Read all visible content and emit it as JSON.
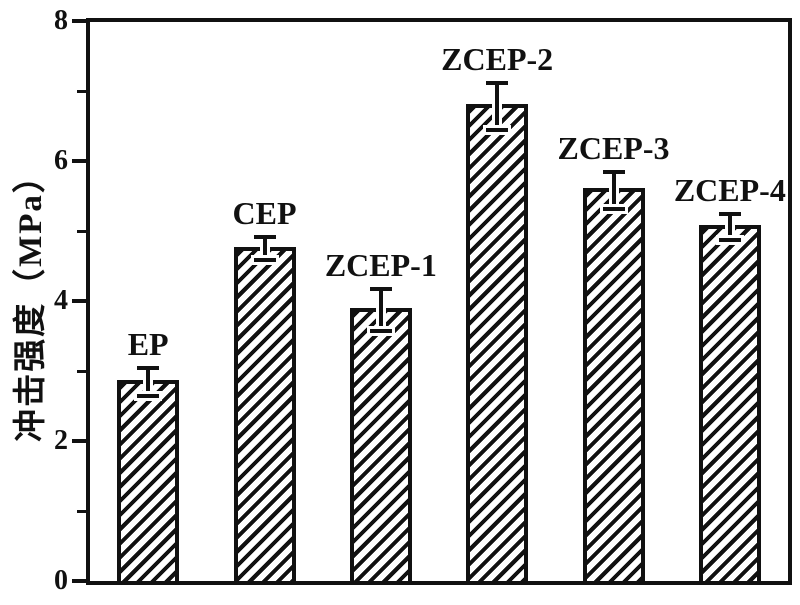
{
  "figure": {
    "background_color": "#ffffff",
    "ink_color": "#111111"
  },
  "chart_data": {
    "type": "bar",
    "title": "",
    "xlabel": "",
    "ylabel": "冲击强度（MPa）",
    "categories": [
      "EP",
      "CEP",
      "ZCEP-1",
      "ZCEP-2",
      "ZCEP-3",
      "ZCEP-4"
    ],
    "values": [
      2.85,
      4.75,
      3.87,
      6.78,
      5.58,
      5.06
    ],
    "errors": [
      0.2,
      0.16,
      0.3,
      0.34,
      0.27,
      0.19
    ],
    "ylim": [
      0,
      8
    ],
    "y_major_ticks": [
      0,
      2,
      4,
      6,
      8
    ],
    "y_minor_ticks": [
      1,
      3,
      5,
      7
    ],
    "x_ticks_visible": false,
    "grid": false,
    "legend": null,
    "bar_style": {
      "fill": "diagonal-hatch",
      "hatch_direction": "bottom-left-to-top-right",
      "edge_color": "#111111",
      "fill_background": "#ffffff"
    },
    "error_bars": {
      "style": "symmetric-with-caps",
      "color": "#111111"
    },
    "category_label_position": "above-bar"
  }
}
